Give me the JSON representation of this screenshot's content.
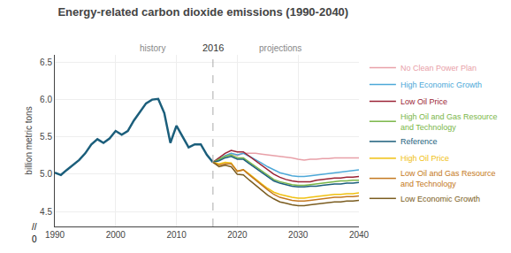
{
  "chart_data": {
    "type": "line",
    "title": "Energy-related carbon dioxide emissions (1990-2040)",
    "ylabel": "billion metric tons",
    "xlim": [
      1990,
      2040
    ],
    "xticks": [
      1990,
      2000,
      2010,
      2020,
      2030,
      2040
    ],
    "ylim": [
      4.3,
      6.6
    ],
    "yticks": [
      4.5,
      {
        "value": 5.0,
        "label": "5.0"
      },
      5.5,
      {
        "value": 6.0,
        "label": "6.0"
      },
      6.5
    ],
    "grid": true,
    "legend": "right",
    "vline": {
      "x": 2016,
      "label": "2016",
      "line_style": "dashed"
    },
    "annotations": [
      {
        "text": "history",
        "x": 2006
      },
      {
        "text": "projections",
        "x": 2027
      }
    ],
    "y_break_labels": [
      "//",
      "0"
    ],
    "series": [
      {
        "color": "#1b5e7b",
        "x": [
          1990,
          1991,
          1992,
          1993,
          1994,
          1995,
          1996,
          1997,
          1998,
          1999,
          2000,
          2001,
          2002,
          2003,
          2004,
          2005,
          2006,
          2007,
          2008,
          2009,
          2010,
          2011,
          2012,
          2013,
          2014,
          2015,
          2016
        ],
        "values": [
          5.02,
          4.99,
          5.06,
          5.13,
          5.19,
          5.28,
          5.4,
          5.47,
          5.42,
          5.48,
          5.58,
          5.53,
          5.58,
          5.72,
          5.84,
          5.95,
          6.0,
          6.01,
          5.82,
          5.42,
          5.65,
          5.5,
          5.36,
          5.4,
          5.4,
          5.26,
          5.16
        ]
      },
      {
        "name": "No Clean Power Plan",
        "color": "#e8a0a8",
        "x": [
          2016,
          2017,
          2018,
          2019,
          2020,
          2021,
          2022,
          2023,
          2024,
          2025,
          2026,
          2027,
          2028,
          2029,
          2030,
          2031,
          2032,
          2033,
          2034,
          2035,
          2036,
          2037,
          2038,
          2039,
          2040
        ],
        "values": [
          5.16,
          5.2,
          5.24,
          5.28,
          5.25,
          5.28,
          5.28,
          5.28,
          5.27,
          5.26,
          5.25,
          5.24,
          5.23,
          5.22,
          5.2,
          5.19,
          5.2,
          5.2,
          5.21,
          5.21,
          5.22,
          5.22,
          5.22,
          5.22,
          5.22
        ]
      },
      {
        "name": "High Economic Growth",
        "color": "#4da8d8",
        "x": [
          2016,
          2017,
          2018,
          2019,
          2020,
          2021,
          2022,
          2023,
          2024,
          2025,
          2026,
          2027,
          2028,
          2029,
          2030,
          2031,
          2032,
          2033,
          2034,
          2035,
          2036,
          2037,
          2038,
          2039,
          2040
        ],
        "values": [
          5.16,
          5.2,
          5.25,
          5.28,
          5.26,
          5.28,
          5.24,
          5.2,
          5.15,
          5.1,
          5.06,
          5.02,
          5.0,
          4.98,
          4.97,
          4.97,
          4.98,
          4.99,
          5.0,
          5.01,
          5.02,
          5.03,
          5.04,
          5.05,
          5.06
        ]
      },
      {
        "name": "Low Oil Price",
        "color": "#9b2335",
        "x": [
          2016,
          2017,
          2018,
          2019,
          2020,
          2021,
          2022,
          2023,
          2024,
          2025,
          2026,
          2027,
          2028,
          2029,
          2030,
          2031,
          2032,
          2033,
          2034,
          2035,
          2036,
          2037,
          2038,
          2039,
          2040
        ],
        "values": [
          5.16,
          5.22,
          5.28,
          5.32,
          5.3,
          5.3,
          5.24,
          5.18,
          5.12,
          5.06,
          5.0,
          4.96,
          4.93,
          4.91,
          4.9,
          4.9,
          4.9,
          4.92,
          4.93,
          4.94,
          4.95,
          4.95,
          4.96,
          4.96,
          4.97
        ]
      },
      {
        "name": "High Oil and Gas Resource\nand Technology",
        "color": "#7ab648",
        "x": [
          2016,
          2017,
          2018,
          2019,
          2020,
          2021,
          2022,
          2023,
          2024,
          2025,
          2026,
          2027,
          2028,
          2029,
          2030,
          2031,
          2032,
          2033,
          2034,
          2035,
          2036,
          2037,
          2038,
          2039,
          2040
        ],
        "values": [
          5.16,
          5.2,
          5.24,
          5.26,
          5.22,
          5.22,
          5.16,
          5.1,
          5.04,
          4.98,
          4.93,
          4.9,
          4.88,
          4.86,
          4.85,
          4.85,
          4.86,
          4.87,
          4.88,
          4.89,
          4.9,
          4.91,
          4.91,
          4.92,
          4.92
        ]
      },
      {
        "name": "Reference",
        "color": "#1b5e7b",
        "x": [
          2016,
          2017,
          2018,
          2019,
          2020,
          2021,
          2022,
          2023,
          2024,
          2025,
          2026,
          2027,
          2028,
          2029,
          2030,
          2031,
          2032,
          2033,
          2034,
          2035,
          2036,
          2037,
          2038,
          2039,
          2040
        ],
        "values": [
          5.16,
          5.18,
          5.22,
          5.24,
          5.2,
          5.2,
          5.14,
          5.08,
          5.02,
          4.96,
          4.91,
          4.88,
          4.86,
          4.84,
          4.83,
          4.83,
          4.84,
          4.84,
          4.85,
          4.86,
          4.87,
          4.87,
          4.88,
          4.88,
          4.89
        ]
      },
      {
        "name": "High Oil Price",
        "color": "#f0c010",
        "x": [
          2016,
          2017,
          2018,
          2019,
          2020,
          2021,
          2022,
          2023,
          2024,
          2025,
          2026,
          2027,
          2028,
          2029,
          2030,
          2031,
          2032,
          2033,
          2034,
          2035,
          2036,
          2037,
          2038,
          2039,
          2040
        ],
        "values": [
          5.16,
          5.14,
          5.16,
          5.15,
          5.04,
          5.06,
          5.0,
          4.93,
          4.87,
          4.81,
          4.76,
          4.73,
          4.71,
          4.69,
          4.68,
          4.68,
          4.69,
          4.7,
          4.71,
          4.72,
          4.73,
          4.73,
          4.74,
          4.74,
          4.75
        ]
      },
      {
        "name": "Low Oil and Gas Resource\nand Technology",
        "color": "#c47820",
        "x": [
          2016,
          2017,
          2018,
          2019,
          2020,
          2021,
          2022,
          2023,
          2024,
          2025,
          2026,
          2027,
          2028,
          2029,
          2030,
          2031,
          2032,
          2033,
          2034,
          2035,
          2036,
          2037,
          2038,
          2039,
          2040
        ],
        "values": [
          5.16,
          5.12,
          5.14,
          5.14,
          5.04,
          5.06,
          4.99,
          4.92,
          4.85,
          4.79,
          4.73,
          4.69,
          4.67,
          4.65,
          4.64,
          4.64,
          4.65,
          4.66,
          4.67,
          4.68,
          4.69,
          4.69,
          4.7,
          4.7,
          4.71
        ]
      },
      {
        "name": "Low Economic Growth",
        "color": "#7a5c20",
        "x": [
          2016,
          2017,
          2018,
          2019,
          2020,
          2021,
          2022,
          2023,
          2024,
          2025,
          2026,
          2027,
          2028,
          2029,
          2030,
          2031,
          2032,
          2033,
          2034,
          2035,
          2036,
          2037,
          2038,
          2039,
          2040
        ],
        "values": [
          5.16,
          5.1,
          5.12,
          5.1,
          5.0,
          4.99,
          4.92,
          4.85,
          4.78,
          4.72,
          4.67,
          4.63,
          4.61,
          4.59,
          4.58,
          4.58,
          4.59,
          4.6,
          4.61,
          4.62,
          4.63,
          4.63,
          4.64,
          4.64,
          4.65
        ]
      }
    ]
  }
}
